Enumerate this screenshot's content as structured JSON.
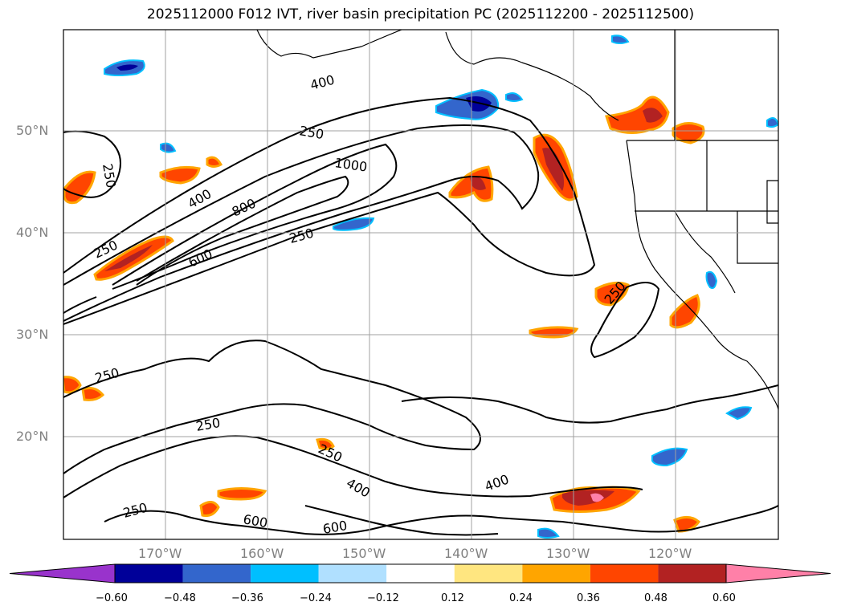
{
  "title": "2025112000 F012 IVT, river basin precipitation PC (2025112200 - 2025112500)",
  "map": {
    "lat_labels": [
      "50°N",
      "40°N",
      "30°N",
      "20°N"
    ],
    "lon_labels": [
      "170°W",
      "160°W",
      "150°W",
      "140°W",
      "130°W",
      "120°W"
    ],
    "extent": {
      "lon_min": -180,
      "lon_max": -110,
      "lat_min": 10,
      "lat_max": 60
    },
    "ivt_contour_labels": [
      "400",
      "250",
      "1000",
      "800",
      "400",
      "250",
      "250",
      "600",
      "250",
      "250",
      "250",
      "250",
      "400",
      "400",
      "250",
      "600",
      "600",
      "250"
    ],
    "background_color": "#ffffff",
    "grid_color": "#a0a0a0"
  },
  "colorbar": {
    "tick_labels": [
      "−0.60",
      "−0.48",
      "−0.36",
      "−0.24",
      "−0.12",
      "0.12",
      "0.24",
      "0.36",
      "0.48",
      "0.60"
    ],
    "colors": [
      "#9933cc",
      "#000099",
      "#3366cc",
      "#00bfff",
      "#b0e0ff",
      "#ffffff",
      "#ffe680",
      "#ffa500",
      "#ff4500",
      "#b22222",
      "#ff80a8"
    ]
  }
}
